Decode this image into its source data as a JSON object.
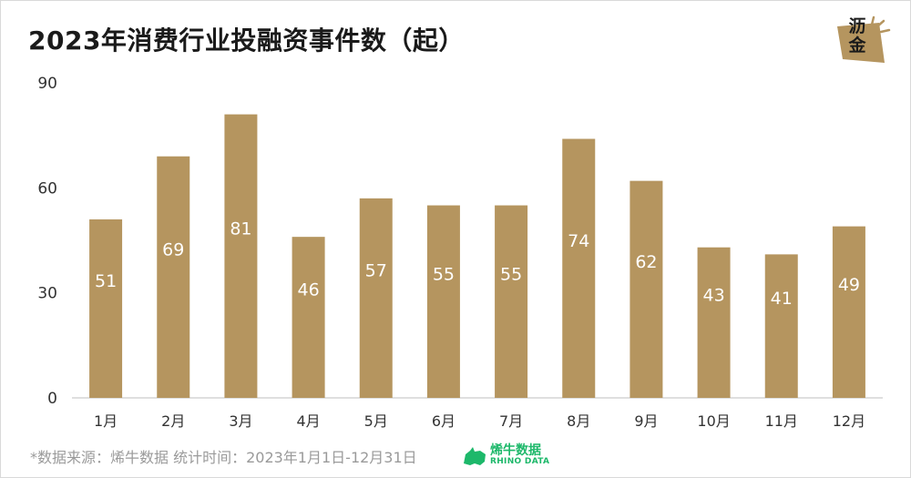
{
  "chart_data": {
    "type": "bar",
    "title": "2023年消费行业投融资事件数（起）",
    "categories": [
      "1月",
      "2月",
      "3月",
      "4月",
      "5月",
      "6月",
      "7月",
      "8月",
      "9月",
      "10月",
      "11月",
      "12月"
    ],
    "values": [
      51,
      69,
      81,
      46,
      57,
      55,
      55,
      74,
      62,
      43,
      41,
      49
    ],
    "ylim": [
      0,
      90
    ],
    "yticks": [
      0,
      30,
      60,
      90
    ],
    "grid": false,
    "bar_color": "#b5955f",
    "label_color": "#ffffff"
  },
  "logo": {
    "text_top": "沥",
    "text_bottom": "金",
    "color": "#b5955f"
  },
  "footer": {
    "source": "*数据来源：烯牛数据 统计时间：2023年1月1日-12月31日",
    "brand_name": "烯牛数据",
    "brand_sub": "RHINO DATA",
    "brand_color": "#1db86a"
  }
}
